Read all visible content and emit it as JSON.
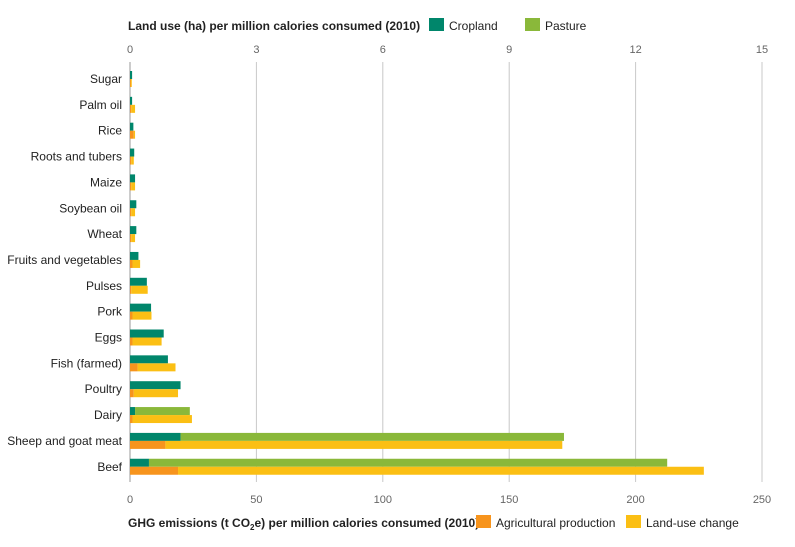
{
  "chart_data": {
    "type": "bar",
    "orientation": "horizontal",
    "categories": [
      "Sugar",
      "Palm oil",
      "Rice",
      "Roots and tubers",
      "Maize",
      "Soybean oil",
      "Wheat",
      "Fruits and vegetables",
      "Pulses",
      "Pork",
      "Eggs",
      "Fish (farmed)",
      "Poultry",
      "Dairy",
      "Sheep and goat meat",
      "Beef"
    ],
    "top_axis": {
      "title": "Land use (ha) per million calories consumed (2010)",
      "range": [
        0,
        15
      ],
      "ticks": [
        "0",
        "3",
        "6",
        "9",
        "12",
        "15"
      ],
      "stacked": true,
      "series": [
        {
          "name": "Cropland",
          "color": "#00866b",
          "values": [
            0.05,
            0.05,
            0.08,
            0.1,
            0.12,
            0.15,
            0.15,
            0.2,
            0.4,
            0.5,
            0.8,
            0.9,
            1.2,
            0.12,
            1.2,
            0.45
          ]
        },
        {
          "name": "Pasture",
          "color": "#8ab83a",
          "values": [
            0,
            0,
            0,
            0,
            0,
            0,
            0,
            0,
            0,
            0,
            0,
            0,
            0,
            1.3,
            9.1,
            12.3
          ]
        }
      ]
    },
    "bottom_axis": {
      "title_parts": {
        "pre": "GHG emissions (t CO",
        "sub": "2",
        "post": "e) per million calories consumed (2010)"
      },
      "range": [
        0,
        250
      ],
      "ticks": [
        "0",
        "50",
        "100",
        "150",
        "200",
        "250"
      ],
      "stacked": true,
      "series": [
        {
          "name": "Agricultural production",
          "color": "#f7941d",
          "values": [
            0.3,
            0.5,
            1.5,
            0.5,
            0.5,
            0.5,
            0.5,
            1,
            0.5,
            1,
            1,
            3,
            1.5,
            1,
            14,
            19
          ]
        },
        {
          "name": "Land-use change",
          "color": "#fbbf14",
          "values": [
            0.2,
            1.5,
            0.5,
            1,
            1.5,
            1.5,
            1.5,
            3,
            6.5,
            7.5,
            11.5,
            15,
            17.5,
            23.5,
            157,
            208
          ]
        }
      ]
    },
    "grid": true
  }
}
